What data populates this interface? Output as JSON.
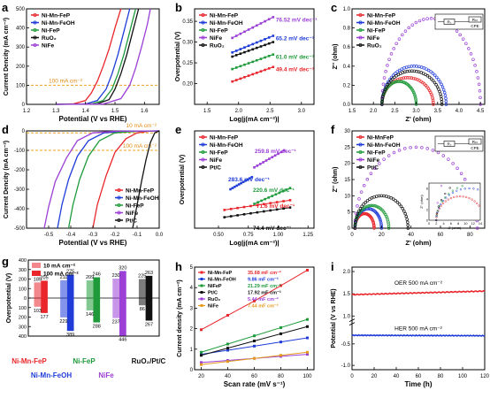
{
  "figure": {
    "panels": [
      {
        "id": "a",
        "letter": "a"
      },
      {
        "id": "b",
        "letter": "b"
      },
      {
        "id": "c",
        "letter": "c"
      },
      {
        "id": "d",
        "letter": "d"
      },
      {
        "id": "e",
        "letter": "e"
      },
      {
        "id": "f",
        "letter": "f"
      },
      {
        "id": "g",
        "letter": "g"
      },
      {
        "id": "h",
        "letter": "h"
      },
      {
        "id": "i",
        "letter": "i"
      }
    ]
  },
  "chart_data": [
    {
      "panel": "a",
      "type": "line",
      "xlabel": "Potential (V vs RHE)",
      "ylabel": "Current Dencity (mA cm⁻²)",
      "xlim": [
        1.2,
        1.65
      ],
      "ylim": [
        0,
        500
      ],
      "xticks": [
        "1.2",
        "1.3",
        "1.4",
        "1.5",
        "1.6"
      ],
      "yticks": [
        "0",
        "100",
        "200",
        "300",
        "400",
        "500"
      ],
      "legend_position": "top-left",
      "annotation": "100 mA cm⁻²",
      "reference_line_y": 100,
      "series": [
        {
          "name": "Ni-Mn-FeP",
          "color": "#e8262b",
          "x": [
            1.3,
            1.36,
            1.4,
            1.42,
            1.44,
            1.46,
            1.48,
            1.5,
            1.52
          ],
          "y": [
            0,
            3,
            20,
            60,
            120,
            200,
            290,
            400,
            500
          ]
        },
        {
          "name": "Ni-Mn-FeOH",
          "color": "#1f3cd8",
          "x": [
            1.3,
            1.4,
            1.44,
            1.47,
            1.49,
            1.51,
            1.53,
            1.55
          ],
          "y": [
            0,
            2,
            20,
            80,
            160,
            260,
            380,
            500
          ]
        },
        {
          "name": "Ni-FeP",
          "color": "#1e9a3a",
          "x": [
            1.3,
            1.42,
            1.46,
            1.49,
            1.51,
            1.53,
            1.55,
            1.57
          ],
          "y": [
            0,
            2,
            20,
            80,
            160,
            260,
            380,
            500
          ]
        },
        {
          "name": "RuO₂",
          "color": "#111111",
          "x": [
            1.3,
            1.44,
            1.48,
            1.5,
            1.52,
            1.54,
            1.56,
            1.58
          ],
          "y": [
            0,
            3,
            25,
            80,
            160,
            260,
            380,
            500
          ]
        },
        {
          "name": "NiFe",
          "color": "#9b3fd6",
          "x": [
            1.3,
            1.46,
            1.52,
            1.55,
            1.57,
            1.59,
            1.61,
            1.62
          ],
          "y": [
            0,
            2,
            30,
            100,
            190,
            300,
            420,
            500
          ]
        }
      ]
    },
    {
      "panel": "b",
      "type": "scatter",
      "xlabel": "Log|j(mA cm⁻²)|",
      "ylabel": "Overpotential (V)",
      "xlim": [
        1.3,
        3.2
      ],
      "ylim": [
        0.15,
        0.38
      ],
      "xticks": [
        "1.5",
        "2.0",
        "2.5",
        "3.0"
      ],
      "yticks": [
        "0.20",
        "0.25",
        "0.30",
        "0.35"
      ],
      "legend_position": "top-left",
      "series": [
        {
          "name": "Ni-Mn-FeP",
          "color": "#e8262b",
          "label": "49.4 mV dec⁻¹",
          "x": [
            1.9,
            2.55
          ],
          "y": [
            0.205,
            0.24
          ]
        },
        {
          "name": "Ni-Mn-FeOH",
          "color": "#1f3cd8",
          "label": "65.2 mV dec⁻¹",
          "x": [
            1.9,
            2.55
          ],
          "y": [
            0.275,
            0.315
          ]
        },
        {
          "name": "Ni-FeP",
          "color": "#1e9a3a",
          "label": "61.0 mV dec⁻¹",
          "x": [
            1.9,
            2.55
          ],
          "y": [
            0.235,
            0.27
          ]
        },
        {
          "name": "NiFe",
          "color": "#9b3fd6",
          "label": "76.52 mV dec⁻¹",
          "x": [
            1.9,
            2.55
          ],
          "y": [
            0.31,
            0.36
          ]
        },
        {
          "name": "RuO₂",
          "color": "#111111",
          "label": "",
          "x": [
            1.9,
            2.55
          ],
          "y": [
            0.265,
            0.3
          ]
        }
      ]
    },
    {
      "panel": "c",
      "type": "scatter",
      "xlabel": "Z' (ohm)",
      "ylabel": "Z'' (ohm)",
      "xlim": [
        1.5,
        4.6
      ],
      "ylim": [
        0,
        1.0
      ],
      "xticks": [
        "1.5",
        "2.0",
        "2.5",
        "3.0",
        "3.5",
        "4.0",
        "4.5"
      ],
      "yticks": [
        "0.0",
        "0.2",
        "0.4",
        "0.6",
        "0.8",
        "1.0"
      ],
      "legend_position": "top-left",
      "circuit_labels": [
        "Rₛ",
        "Rₕₜ",
        "CPE"
      ],
      "series": [
        {
          "name": "Ni-Mn-FeP",
          "color": "#e8262b",
          "x_start": 2.2,
          "x_end": 3.4,
          "peak": 0.28
        },
        {
          "name": "Ni-Mn-FeOH",
          "color": "#1f3cd8",
          "x_start": 2.2,
          "x_end": 3.7,
          "peak": 0.4
        },
        {
          "name": "Ni-FeP",
          "color": "#1e9a3a",
          "x_start": 2.2,
          "x_end": 3.0,
          "peak": 0.24
        },
        {
          "name": "NiFe",
          "color": "#9b3fd6",
          "x_start": 2.2,
          "x_end": 4.5,
          "peak": 0.9
        },
        {
          "name": "RuO₂",
          "color": "#111111",
          "x_start": 2.2,
          "x_end": 3.6,
          "peak": 0.35
        }
      ]
    },
    {
      "panel": "d",
      "type": "line",
      "xlabel": "Potential (V vs RHE)",
      "ylabel": "Current Dencity (mA cm⁻²)",
      "xlim": [
        -0.6,
        0.0
      ],
      "ylim": [
        -500,
        0
      ],
      "xticks": [
        "-0.5",
        "-0.4",
        "-0.3",
        "-0.2",
        "-0.1",
        "0.0"
      ],
      "yticks": [
        "0",
        "-100",
        "-200",
        "-300",
        "-400",
        "-500"
      ],
      "legend_position": "bottom-right",
      "annotations": [
        "10 mA cm⁻²",
        "100 mA cm⁻²"
      ],
      "reference_lines_y": [
        -10,
        -100
      ],
      "series": [
        {
          "name": "Ni-Mn-FeP",
          "color": "#e8262b",
          "x": [
            0.0,
            -0.05,
            -0.1,
            -0.15,
            -0.2,
            -0.24,
            -0.28,
            -0.3
          ],
          "y": [
            0,
            -2,
            -10,
            -40,
            -110,
            -230,
            -380,
            -500
          ]
        },
        {
          "name": "Ni-Mn-FeOH",
          "color": "#1f3cd8",
          "x": [
            0.0,
            -0.15,
            -0.25,
            -0.32,
            -0.37,
            -0.41,
            -0.44,
            -0.46
          ],
          "y": [
            0,
            -2,
            -10,
            -50,
            -130,
            -250,
            -380,
            -500
          ]
        },
        {
          "name": "Ni-FeP",
          "color": "#1e9a3a",
          "x": [
            0.0,
            -0.1,
            -0.2,
            -0.27,
            -0.32,
            -0.36,
            -0.39,
            -0.41
          ],
          "y": [
            0,
            -2,
            -10,
            -50,
            -130,
            -250,
            -380,
            -500
          ]
        },
        {
          "name": "NiFe",
          "color": "#9b3fd6",
          "x": [
            0.0,
            -0.2,
            -0.3,
            -0.37,
            -0.42,
            -0.47,
            -0.5,
            -0.52
          ],
          "y": [
            0,
            -2,
            -10,
            -50,
            -140,
            -260,
            -390,
            -500
          ]
        },
        {
          "name": "Pt/C",
          "color": "#111111",
          "x": [
            0.0,
            -0.02,
            -0.04,
            -0.06,
            -0.08,
            -0.1,
            -0.12
          ],
          "y": [
            0,
            -10,
            -60,
            -150,
            -260,
            -380,
            -500
          ]
        }
      ]
    },
    {
      "panel": "e",
      "type": "scatter",
      "xlabel": "Log|j(mA cm⁻²)|",
      "ylabel": "Overpotential (V)",
      "xlim": [
        0.3,
        1.3
      ],
      "ylim": [
        0.0,
        0.4
      ],
      "xticks": [
        "0.50",
        "0.75",
        "1.00",
        "1.25"
      ],
      "yticks": [],
      "legend_position": "top-left",
      "series": [
        {
          "name": "Ni-Mn-FeP",
          "color": "#e8262b",
          "label": "71.6 mV dec⁻¹",
          "x": [
            0.55,
            1.1
          ],
          "y": [
            0.075,
            0.115
          ]
        },
        {
          "name": "Ni-Mn-FeOH",
          "color": "#1f3cd8",
          "label": "283.6 mV dec⁻¹",
          "x": [
            0.6,
            0.78
          ],
          "y": [
            0.16,
            0.21
          ]
        },
        {
          "name": "Ni-FeP",
          "color": "#1e9a3a",
          "label": "220.6 mV dec⁻¹",
          "x": [
            0.8,
            1.1
          ],
          "y": [
            0.1,
            0.165
          ]
        },
        {
          "name": "NiFe",
          "color": "#9b3fd6",
          "label": "259.8 mV dec⁻¹",
          "x": [
            0.8,
            1.05
          ],
          "y": [
            0.25,
            0.32
          ]
        },
        {
          "name": "Pt/C",
          "color": "#111111",
          "label": "74.4 mV dec⁻¹",
          "x": [
            0.55,
            1.1
          ],
          "y": [
            0.045,
            0.085
          ]
        }
      ]
    },
    {
      "panel": "f",
      "type": "scatter",
      "xlabel": "Z' (ohm)",
      "ylabel": "Z'' (ohm)",
      "xlim": [
        0,
        90
      ],
      "ylim": [
        0,
        30
      ],
      "xticks": [
        "0",
        "20",
        "40",
        "60",
        "80"
      ],
      "yticks": [
        "0",
        "5",
        "10",
        "15",
        "20",
        "25",
        "30"
      ],
      "legend_position": "top-left",
      "inset_xticks": [
        "0",
        "2",
        "4",
        "6",
        "8",
        "10",
        "12",
        "14"
      ],
      "inset_yticks": [
        "0",
        "2",
        "4",
        "6"
      ],
      "circuit_labels": [
        "Rₛ",
        "Rₕₜ",
        "CPE"
      ],
      "series": [
        {
          "name": "Ni-MnFeP",
          "color": "#e8262b",
          "x_start": 2,
          "x_end": 15,
          "peak": 4.5
        },
        {
          "name": "Ni-Mn-FeOH",
          "color": "#1f3cd8",
          "x_start": 2,
          "x_end": 20,
          "peak": 6
        },
        {
          "name": "Ni-FeP",
          "color": "#1e9a3a",
          "x_start": 2,
          "x_end": 25,
          "peak": 7
        },
        {
          "name": "NiFe",
          "color": "#9b3fd6",
          "x_start": 2,
          "x_end": 85,
          "peak": 25
        },
        {
          "name": "Pt/C",
          "color": "#111111",
          "x_start": 2,
          "x_end": 38,
          "peak": 10
        }
      ]
    },
    {
      "panel": "g",
      "type": "bar",
      "ylabel": "Overpotential (V)",
      "legend": [
        "10 mA cm⁻²",
        "100 mA cm⁻²"
      ],
      "legend_position": "top-left",
      "yticks": [
        "400",
        "300",
        "200",
        "100",
        "0",
        "100",
        "200",
        "300",
        "400"
      ],
      "categories": [
        "Ni-Mn-FeP",
        "Ni-Mn-FeOH",
        "Ni-FeP",
        "NiFe",
        "RuO₂/Pt/C"
      ],
      "category_colors": [
        "#e8262b",
        "#1f3cd8",
        "#1e9a3a",
        "#9b3fd6",
        "#111111"
      ],
      "oer_10": [
        185,
        211,
        209,
        230,
        225
      ],
      "oer_100": [
        205,
        275,
        246,
        320,
        263
      ],
      "her_10": [
        103,
        229,
        146,
        237,
        86
      ],
      "her_100": [
        177,
        389,
        288,
        446,
        267
      ]
    },
    {
      "panel": "h",
      "type": "scatter",
      "xlabel": "Scan rate (mV s⁻¹)",
      "ylabel": "Current density (mA cm⁻²)",
      "xlim": [
        15,
        105
      ],
      "ylim": [
        0,
        5
      ],
      "xticks": [
        "20",
        "40",
        "60",
        "80",
        "100"
      ],
      "yticks": [
        "0",
        "1",
        "2",
        "3",
        "4",
        "5"
      ],
      "legend_position": "top-left",
      "x": [
        20,
        40,
        60,
        80,
        100
      ],
      "series": [
        {
          "name": "Ni-Mn-FeP",
          "color": "#e8262b",
          "label": "35.68 mF cm⁻²",
          "values": [
            1.95,
            2.65,
            3.35,
            4.1,
            4.85
          ]
        },
        {
          "name": "Ni-Mn-FeOH",
          "color": "#1f3cd8",
          "label": "9.86 mF cm⁻²",
          "values": [
            0.75,
            0.95,
            1.15,
            1.35,
            1.55
          ]
        },
        {
          "name": "NiFeP",
          "color": "#1e9a3a",
          "label": "21.29 mF cm⁻²",
          "values": [
            0.85,
            1.25,
            1.65,
            2.05,
            2.45
          ]
        },
        {
          "name": "Pt/C",
          "color": "#111111",
          "label": "17.92 mF cm⁻²",
          "values": [
            0.7,
            1.05,
            1.4,
            1.75,
            2.1
          ]
        },
        {
          "name": "RuO₂",
          "color": "#9b3fd6",
          "label": "5.44 mF cm⁻²",
          "values": [
            0.35,
            0.45,
            0.55,
            0.65,
            0.75
          ]
        },
        {
          "name": "NiFe",
          "color": "#e39a1f",
          "label": "7.44 mF cm⁻²",
          "values": [
            0.25,
            0.4,
            0.55,
            0.7,
            0.85
          ]
        }
      ]
    },
    {
      "panel": "i",
      "type": "line",
      "xlabel": "Time (h)",
      "ylabel": "Potential (V vs RHE)",
      "xlim": [
        0,
        120
      ],
      "xticks": [
        "0",
        "20",
        "40",
        "60",
        "80",
        "100",
        "120"
      ],
      "yticks_top": [
        "2.0",
        "1.5",
        "1.0"
      ],
      "yticks_bottom": [
        "-0.5",
        "-1.0"
      ],
      "series": [
        {
          "name": "OER 500 mA cm⁻²",
          "color": "#e8262b",
          "level_start": 1.48,
          "level_end": 1.56
        },
        {
          "name": "HER 500 mA cm⁻²",
          "color": "#1f3cd8",
          "level_start": -0.3,
          "level_end": -0.31
        }
      ]
    }
  ]
}
